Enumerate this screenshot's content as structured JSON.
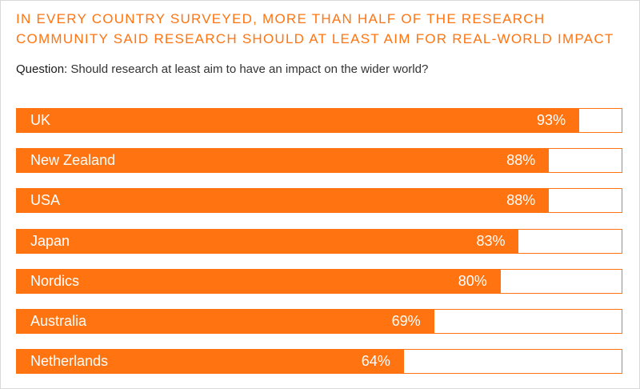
{
  "chart_data": {
    "type": "bar",
    "orientation": "horizontal",
    "title": "In every country surveyed, more than half of the research community said research should at least aim for real-world impact",
    "question_label": "Question:",
    "question_text": " Should research at least aim to have an impact on the wider world?",
    "categories": [
      "UK",
      "New Zealand",
      "USA",
      "Japan",
      "Nordics",
      "Australia",
      "Netherlands"
    ],
    "values": [
      93,
      88,
      88,
      83,
      80,
      69,
      64
    ],
    "value_labels": [
      "93%",
      "88%",
      "88%",
      "83%",
      "80%",
      "69%",
      "64%"
    ],
    "unit": "%",
    "xlim": [
      0,
      100
    ],
    "bar_color": "#ff7411",
    "grid": false
  }
}
